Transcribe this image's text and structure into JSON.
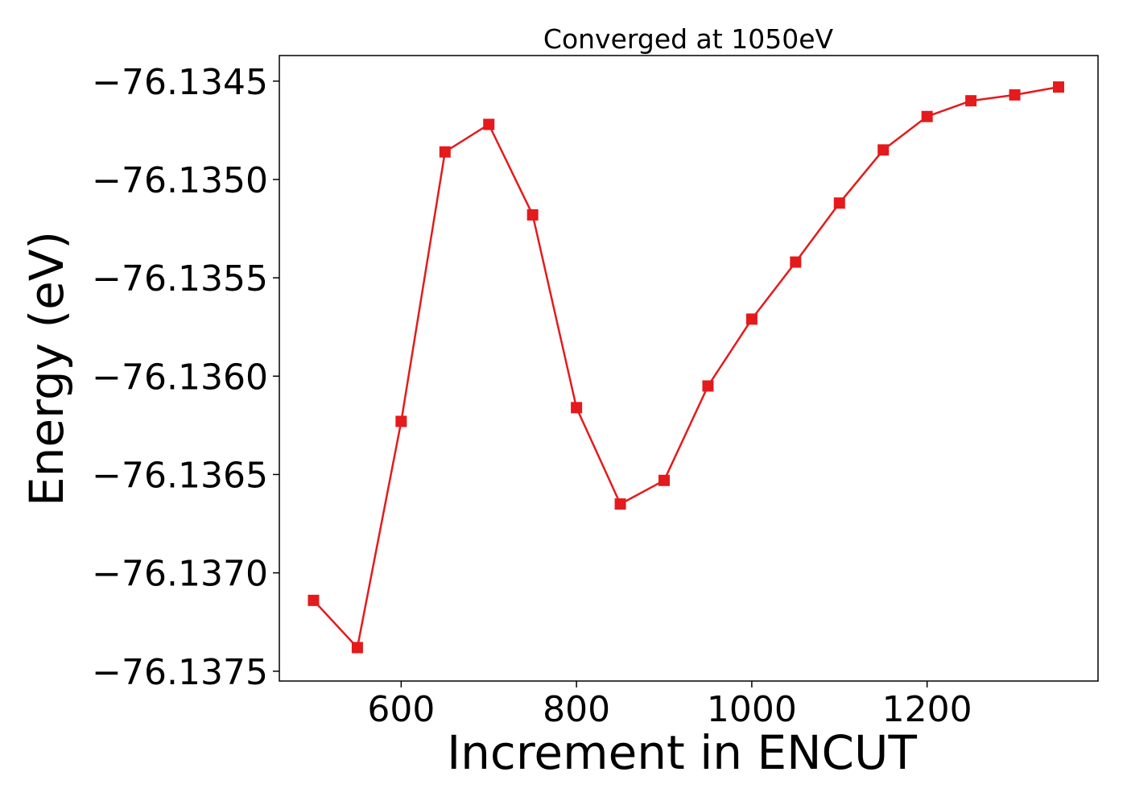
{
  "chart_data": {
    "type": "line",
    "title": "Converged at 1050eV",
    "xlabel": "Increment in ENCUT",
    "ylabel": "Energy (eV)",
    "xlim": [
      461,
      1395
    ],
    "ylim": [
      -76.13755,
      -76.13437
    ],
    "x_ticks": [
      600,
      800,
      1000,
      1200
    ],
    "x_tick_labels": [
      "600",
      "800",
      "1000",
      "1200"
    ],
    "y_ticks": [
      -76.1345,
      -76.135,
      -76.1355,
      -76.136,
      -76.1365,
      -76.137,
      -76.1375
    ],
    "y_tick_labels": [
      "−76.1345",
      "−76.1350",
      "−76.1355",
      "−76.1360",
      "−76.1365",
      "−76.1370",
      "−76.1375"
    ],
    "grid": false,
    "series": [
      {
        "color": "#e41a1c",
        "marker": "square",
        "x": [
          500,
          550,
          600,
          650,
          700,
          750,
          800,
          850,
          900,
          950,
          1000,
          1050,
          1100,
          1150,
          1200,
          1250,
          1300,
          1350
        ],
        "y": [
          -76.13714,
          -76.13738,
          -76.13623,
          -76.13486,
          -76.13472,
          -76.13518,
          -76.13616,
          -76.13665,
          -76.13653,
          -76.13605,
          -76.13571,
          -76.13542,
          -76.13512,
          -76.13485,
          -76.13468,
          -76.1346,
          -76.13457,
          -76.13453
        ]
      }
    ]
  }
}
